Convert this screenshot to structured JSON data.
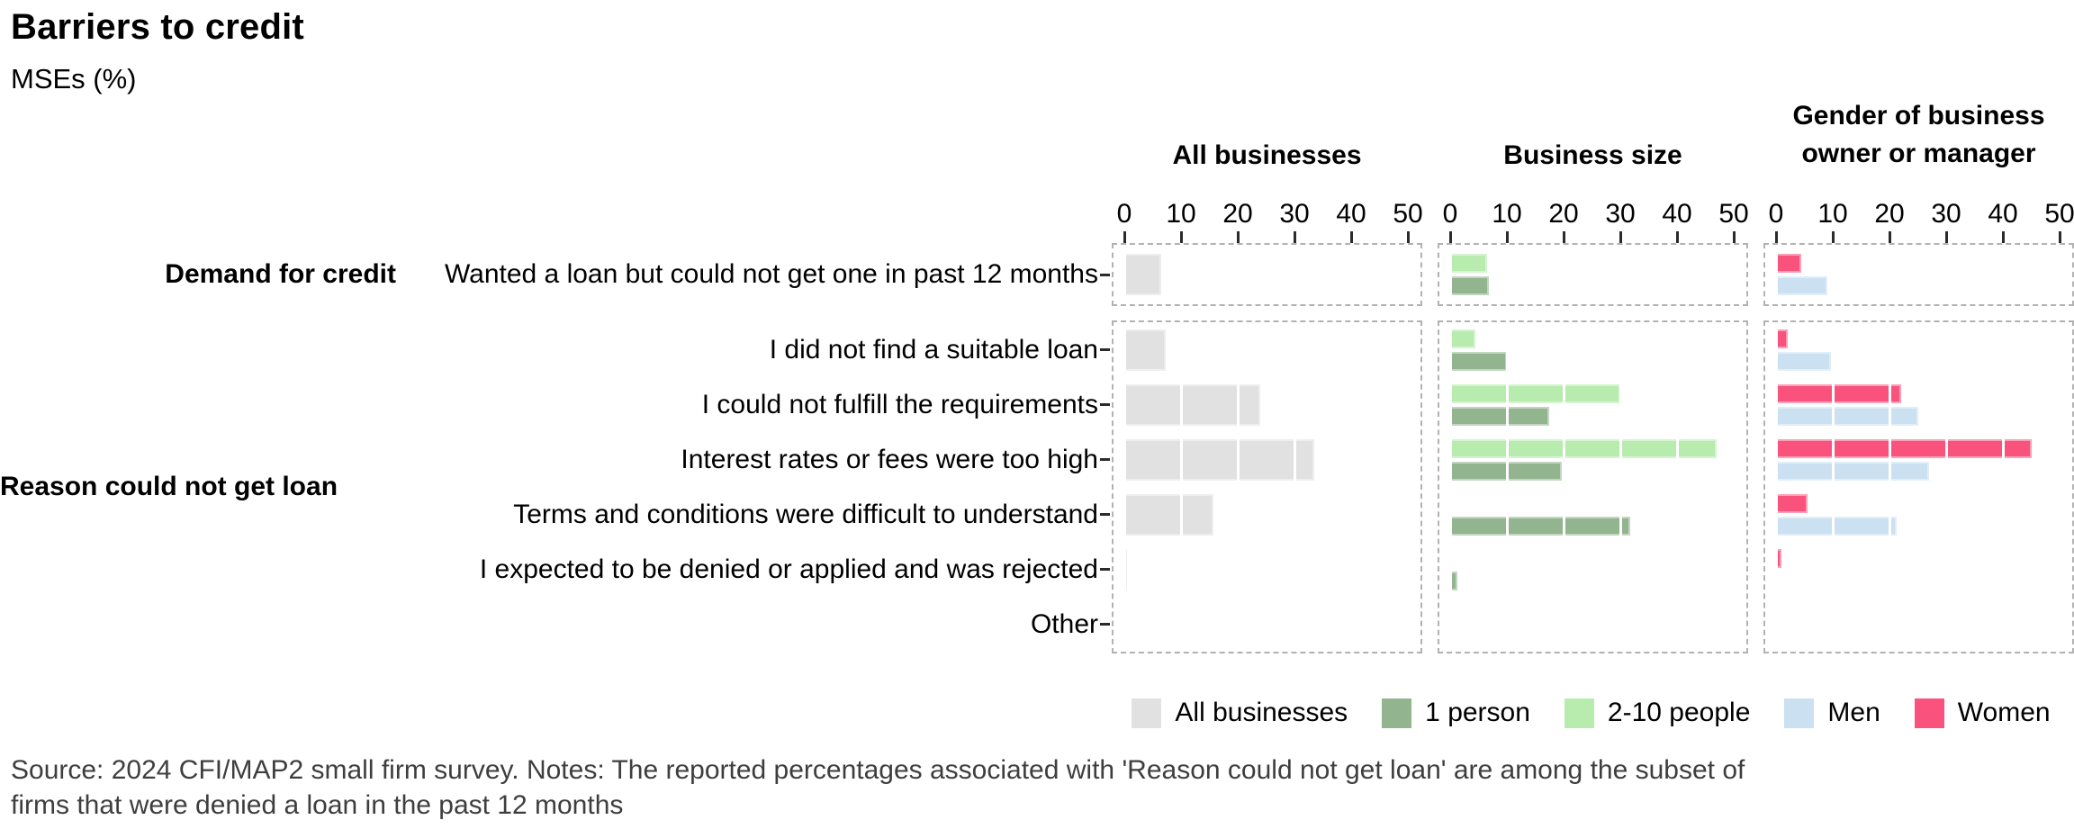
{
  "title": "Barriers to credit",
  "subtitle": "MSEs (%)",
  "source_lines": [
    "Source: 2024 CFI/MAP2 small firm survey. Notes: The reported percentages associated with 'Reason could not get loan' are among the subset of",
    "firms that were denied a loan in the past 12 months"
  ],
  "legend": [
    {
      "label": "All businesses",
      "color": "#e1e1e1"
    },
    {
      "label": "1 person",
      "color": "#92b48e"
    },
    {
      "label": "2-10 people",
      "color": "#b7ecae"
    },
    {
      "label": "Men",
      "color": "#cbe0f1"
    },
    {
      "label": "Women",
      "color": "#f8527d"
    }
  ],
  "chart_data": {
    "type": "bar",
    "orientation": "horizontal",
    "value_unit": "percent of MSEs",
    "x_axis": {
      "min": 0,
      "max": 50,
      "ticks": [
        0,
        10,
        20,
        30,
        40,
        50
      ],
      "position": "top"
    },
    "grid": "white major gridlines every 10 drawn over bars",
    "legend_position": "bottom",
    "facets": [
      {
        "label": "Demand for credit",
        "categories": [
          "Wanted a loan but could not get one in past 12 months"
        ]
      },
      {
        "label": "Reason could not get loan",
        "categories": [
          "I did not find a suitable loan",
          "I could not fulfill the requirements",
          "Interest rates or fees were too high",
          "Terms and conditions were difficult to understand",
          "I expected to be denied or applied and was rejected",
          "Other"
        ]
      }
    ],
    "panels": [
      {
        "title_lines": [
          "All businesses"
        ],
        "series": [
          {
            "name": "All businesses",
            "color": "#e1e1e1",
            "values": [
              [
                6.5
              ],
              [
                7.3,
                24,
                33.5,
                15.7,
                0.5,
                0
              ]
            ]
          }
        ]
      },
      {
        "title_lines": [
          "Business size"
        ],
        "series": [
          {
            "name": "2-10 people",
            "color": "#b7ecae",
            "values": [
              [
                6.5
              ],
              [
                4.4,
                30,
                47,
                0,
                0,
                0
              ]
            ]
          },
          {
            "name": "1 person",
            "color": "#92b48e",
            "values": [
              [
                6.8
              ],
              [
                10,
                17.5,
                19.7,
                31.7,
                1.2,
                0
              ]
            ]
          }
        ]
      },
      {
        "title_lines": [
          "Gender of business",
          "owner or manager"
        ],
        "series": [
          {
            "name": "Women",
            "color": "#f8527d",
            "values": [
              [
                4.4
              ],
              [
                2.1,
                22,
                45,
                5.5,
                0.9,
                0
              ]
            ]
          },
          {
            "name": "Men",
            "color": "#cbe0f1",
            "values": [
              [
                9
              ],
              [
                9.7,
                25,
                27,
                21.3,
                0.3,
                0
              ]
            ]
          }
        ]
      }
    ]
  }
}
